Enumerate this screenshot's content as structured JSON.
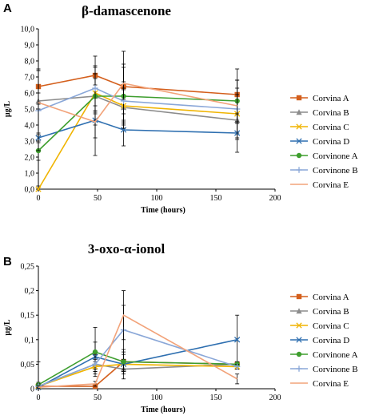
{
  "chart_data": [
    {
      "type": "line",
      "panel": "A",
      "title": "β-damascenone",
      "xlabel": "Time (hours)",
      "ylabel": "µg/L",
      "xlim": [
        0,
        200
      ],
      "ylim": [
        0,
        10
      ],
      "x_ticks": [
        "0",
        "50",
        "100",
        "150",
        "200"
      ],
      "y_ticks": [
        "0,0",
        "1,0",
        "2,0",
        "3,0",
        "4,0",
        "5,0",
        "6,0",
        "7,0",
        "8,0",
        "9,0",
        "10,0"
      ],
      "grid": false,
      "legend": "right",
      "x": [
        0,
        48,
        72,
        168
      ],
      "series": [
        {
          "name": "Corvina A",
          "values": [
            6.4,
            7.1,
            6.4,
            5.9
          ],
          "error": [
            1.1,
            1.2,
            2.2,
            1.6
          ]
        },
        {
          "name": "Corvina B",
          "values": [
            5.5,
            5.8,
            5.1,
            4.3
          ],
          "error": [
            0.5,
            1.1,
            1.1,
            1.2
          ]
        },
        {
          "name": "Corvina C",
          "values": [
            0.0,
            6.0,
            5.2,
            4.7
          ],
          "error": [
            0.2,
            1.2,
            1.1,
            1.2
          ]
        },
        {
          "name": "Corvina D",
          "values": [
            3.2,
            4.3,
            3.7,
            3.5
          ],
          "error": [
            0.3,
            2.2,
            1.0,
            1.2
          ]
        },
        {
          "name": "Corvinone A",
          "values": [
            2.4,
            5.8,
            5.8,
            5.5
          ],
          "error": [
            0.6,
            1.8,
            2.0,
            1.3
          ]
        },
        {
          "name": "Corvinone B",
          "values": [
            4.9,
            6.3,
            5.5,
            5.0
          ],
          "error": [
            2.5,
            1.4,
            1.2,
            1.8
          ]
        },
        {
          "name": "Corvina E",
          "values": [
            5.4,
            4.2,
            6.6,
            5.2
          ],
          "error": [
            2.0,
            1.0,
            1.0,
            1.1
          ]
        }
      ]
    },
    {
      "type": "line",
      "panel": "B",
      "title": "3-oxo-α-ionol",
      "xlabel": "Time (hours)",
      "ylabel": "µg/L",
      "xlim": [
        0,
        200
      ],
      "ylim": [
        0,
        0.25
      ],
      "x_ticks": [
        "0",
        "50",
        "100",
        "150",
        "200"
      ],
      "y_ticks": [
        "0",
        "0,05",
        "0,1",
        "0,15",
        "0,2",
        "0,25"
      ],
      "grid": false,
      "legend": "right",
      "x": [
        0,
        48,
        72,
        168
      ],
      "series": [
        {
          "name": "Corvina A",
          "values": [
            0.005,
            0.005,
            0.055,
            0.05
          ],
          "error": [
            0.05,
            0.005,
            0.005,
            0.005
          ]
        },
        {
          "name": "Corvina B",
          "values": [
            0.005,
            0.05,
            0.04,
            0.05
          ],
          "error": [
            0.005,
            0.01,
            0.01,
            0.005
          ]
        },
        {
          "name": "Corvina C",
          "values": [
            0.005,
            0.045,
            0.05,
            0.045
          ],
          "error": [
            0.005,
            0.01,
            0.01,
            0.005
          ]
        },
        {
          "name": "Corvina D",
          "values": [
            0.003,
            0.065,
            0.05,
            0.1
          ],
          "error": [
            0.003,
            0.03,
            0.03,
            0.05
          ]
        },
        {
          "name": "Corvinone A",
          "values": [
            0.008,
            0.075,
            0.055,
            0.05
          ],
          "error": [
            0.005,
            0.05,
            0.02,
            0.005
          ]
        },
        {
          "name": "Corvinone B",
          "values": [
            0.005,
            0.05,
            0.12,
            0.045
          ],
          "error": [
            0.005,
            0.02,
            0.05,
            0.005
          ]
        },
        {
          "name": "Corvina E",
          "values": [
            0.003,
            0.01,
            0.15,
            0.02
          ],
          "error": [
            0.003,
            0.005,
            0.05,
            0.01
          ]
        }
      ]
    }
  ],
  "series_styles": [
    {
      "color": "#D45F1C",
      "marker": "square"
    },
    {
      "color": "#8C8C8C",
      "marker": "triangle"
    },
    {
      "color": "#F0B400",
      "marker": "x"
    },
    {
      "color": "#2E6FB0",
      "marker": "x"
    },
    {
      "color": "#3E9E2E",
      "marker": "circle"
    },
    {
      "color": "#8AA7D8",
      "marker": "plus"
    },
    {
      "color": "#F2A37A",
      "marker": "none"
    }
  ]
}
